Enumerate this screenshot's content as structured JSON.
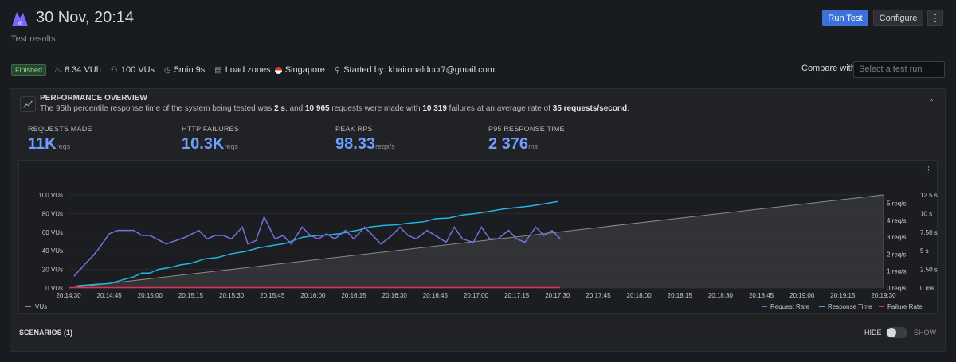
{
  "header": {
    "title": "30 Nov, 20:14",
    "subtitle": "Test results",
    "logo_icon": "k6-logo",
    "run_test_label": "Run Test",
    "configure_label": "Configure",
    "more_label": "⋮"
  },
  "meta": {
    "status": "Finished",
    "vuh": "8.34 VUh",
    "vus": "100 VUs",
    "duration": "5min 9s",
    "load_zones_label": "Load zones:",
    "load_zone": "Singapore",
    "started_by_label": "Started by:",
    "started_by": "khaironaldocr7@gmail.com"
  },
  "compare": {
    "label": "Compare with",
    "placeholder": "Select a test run"
  },
  "overview": {
    "title": "PERFORMANCE OVERVIEW",
    "desc_1": "The 95th percentile response time of the system being tested was ",
    "p95_seconds": "2 s",
    "desc_2": ", and ",
    "requests": "10 965",
    "desc_3": " requests were made with ",
    "failures": "10 319",
    "desc_4": " failures at an average rate of ",
    "rate": "35 requests/second",
    "desc_5": ".",
    "collapse_icon": "chevron-up-icon"
  },
  "stats": [
    {
      "label": "REQUESTS MADE",
      "value": "11K",
      "unit": "reqs"
    },
    {
      "label": "HTTP FAILURES",
      "value": "10.3K",
      "unit": "reqs"
    },
    {
      "label": "PEAK RPS",
      "value": "98.33",
      "unit": "reqs/s"
    },
    {
      "label": "P95 RESPONSE TIME",
      "value": "2 376",
      "unit": "ms"
    }
  ],
  "chart_data": {
    "type": "line",
    "title": "",
    "x": [
      "20:14:30",
      "20:14:45",
      "20:15:00",
      "20:15:15",
      "20:15:30",
      "20:15:45",
      "20:16:00",
      "20:16:15",
      "20:16:30",
      "20:16:45",
      "20:17:00",
      "20:17:15",
      "20:17:30",
      "20:17:45",
      "20:18:00",
      "20:18:15",
      "20:18:30",
      "20:18:45",
      "20:19:00",
      "20:19:15",
      "20:19:30"
    ],
    "y_left_ticks": [
      "0 VUs",
      "20 VUs",
      "40 VUs",
      "60 VUs",
      "80 VUs",
      "100 VUs"
    ],
    "y_left_lim": [
      0,
      100
    ],
    "y_rps_ticks": [
      "0 req/s",
      "1 req/s",
      "2 req/s",
      "3 req/s",
      "4 req/s",
      "5 req/s"
    ],
    "y_rps_lim": [
      0,
      5.5
    ],
    "y_ms_ticks": [
      "0 ms",
      "2.50 s",
      "5 s",
      "7.50 s",
      "10 s",
      "12.5 s"
    ],
    "y_ms_lim": [
      0,
      12.5
    ],
    "x_lim_seconds_after_start": [
      0,
      300
    ],
    "legend": {
      "left": [
        "VUs"
      ],
      "right": [
        "Request Rate",
        "Response Time",
        "Failure Rate"
      ]
    },
    "colors": {
      "vus": "#8a8a8a",
      "request_rate": "#7b6fe0",
      "response_time": "#1fb6e0",
      "failure_rate": "#e0305a"
    },
    "series": [
      {
        "name": "VUs",
        "axis": "left",
        "points": [
          [
            0,
            0
          ],
          [
            300,
            100
          ]
        ]
      },
      {
        "name": "Request Rate",
        "axis": "rps",
        "points": [
          [
            2,
            0.7
          ],
          [
            6,
            1.4
          ],
          [
            9,
            1.9
          ],
          [
            11,
            2.3
          ],
          [
            15,
            3.2
          ],
          [
            18,
            3.4
          ],
          [
            24,
            3.4
          ],
          [
            27,
            3.1
          ],
          [
            30,
            3.1
          ],
          [
            36,
            2.6
          ],
          [
            43,
            3.0
          ],
          [
            48,
            3.4
          ],
          [
            51,
            2.9
          ],
          [
            54,
            3.1
          ],
          [
            57,
            3.1
          ],
          [
            60,
            2.9
          ],
          [
            64,
            3.6
          ],
          [
            66,
            2.6
          ],
          [
            69,
            2.8
          ],
          [
            72,
            4.2
          ],
          [
            76,
            2.9
          ],
          [
            79,
            3.1
          ],
          [
            82,
            2.6
          ],
          [
            86,
            3.6
          ],
          [
            89,
            3.1
          ],
          [
            92,
            2.9
          ],
          [
            95,
            3.2
          ],
          [
            98,
            2.9
          ],
          [
            102,
            3.4
          ],
          [
            105,
            2.9
          ],
          [
            109,
            3.6
          ],
          [
            112,
            3.1
          ],
          [
            115,
            2.6
          ],
          [
            119,
            3.1
          ],
          [
            122,
            3.6
          ],
          [
            125,
            3.1
          ],
          [
            128,
            2.9
          ],
          [
            132,
            3.4
          ],
          [
            135,
            3.1
          ],
          [
            139,
            2.7
          ],
          [
            142,
            3.6
          ],
          [
            145,
            2.9
          ],
          [
            149,
            2.7
          ],
          [
            152,
            3.6
          ],
          [
            155,
            2.9
          ],
          [
            158,
            2.9
          ],
          [
            162,
            3.4
          ],
          [
            165,
            2.9
          ],
          [
            168,
            2.7
          ],
          [
            172,
            3.6
          ],
          [
            175,
            3.1
          ],
          [
            178,
            3.4
          ],
          [
            181,
            2.9
          ]
        ]
      },
      {
        "name": "Response Time",
        "axis": "ms",
        "points": [
          [
            3,
            0.3
          ],
          [
            10,
            0.5
          ],
          [
            15,
            0.6
          ],
          [
            20,
            1.1
          ],
          [
            24,
            1.5
          ],
          [
            27,
            2.0
          ],
          [
            30,
            2.0
          ],
          [
            33,
            2.5
          ],
          [
            38,
            2.8
          ],
          [
            41,
            3.1
          ],
          [
            45,
            3.3
          ],
          [
            50,
            3.9
          ],
          [
            55,
            4.1
          ],
          [
            60,
            4.6
          ],
          [
            65,
            4.9
          ],
          [
            70,
            5.4
          ],
          [
            75,
            5.7
          ],
          [
            80,
            6.0
          ],
          [
            86,
            6.8
          ],
          [
            90,
            7.0
          ],
          [
            95,
            7.1
          ],
          [
            100,
            7.3
          ],
          [
            104,
            7.6
          ],
          [
            107,
            7.8
          ],
          [
            111,
            8.2
          ],
          [
            116,
            8.4
          ],
          [
            121,
            8.5
          ],
          [
            125,
            8.7
          ],
          [
            131,
            8.9
          ],
          [
            135,
            9.3
          ],
          [
            140,
            9.4
          ],
          [
            145,
            9.8
          ],
          [
            150,
            10.0
          ],
          [
            155,
            10.3
          ],
          [
            160,
            10.6
          ],
          [
            165,
            10.8
          ],
          [
            170,
            11.0
          ],
          [
            175,
            11.3
          ],
          [
            180,
            11.6
          ]
        ]
      },
      {
        "name": "Failure Rate",
        "axis": "rps",
        "points": [
          [
            0,
            0
          ],
          [
            181,
            0
          ]
        ]
      }
    ]
  },
  "scenarios": {
    "label": "SCENARIOS (1)",
    "hide_label": "HIDE",
    "show_label": "SHOW"
  }
}
